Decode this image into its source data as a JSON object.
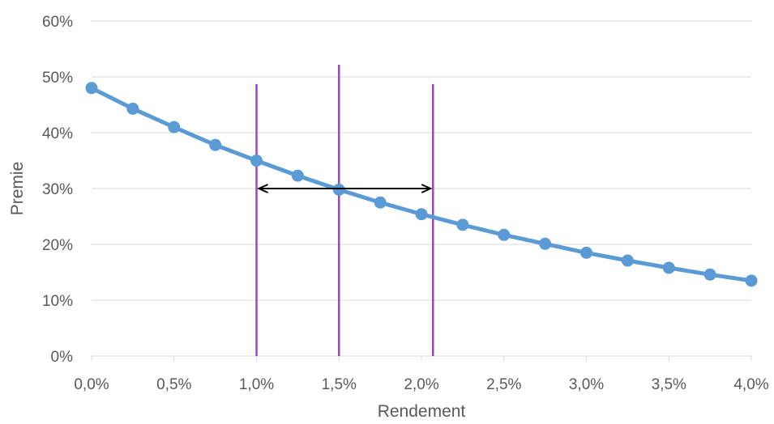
{
  "chart_data": {
    "type": "line",
    "title": "",
    "xlabel": "Rendement",
    "ylabel": "Premie",
    "x_ticks": [
      "0,0%",
      "0,5%",
      "1,0%",
      "1,5%",
      "2,0%",
      "2,5%",
      "3,0%",
      "3,5%",
      "4,0%"
    ],
    "y_ticks": [
      "0%",
      "10%",
      "20%",
      "30%",
      "40%",
      "50%",
      "60%"
    ],
    "xlim": [
      0,
      4.0
    ],
    "ylim": [
      0,
      60
    ],
    "grid": "horizontal",
    "legend": "none",
    "series": [
      {
        "color": "#5B9BD5",
        "x": [
          0,
          0.25,
          0.5,
          0.75,
          1.0,
          1.25,
          1.5,
          1.75,
          2.0,
          2.25,
          2.5,
          2.75,
          3.0,
          3.25,
          3.5,
          3.75,
          4.0
        ],
        "y": [
          48.0,
          44.3,
          41.0,
          37.8,
          35.0,
          32.3,
          29.8,
          27.5,
          25.4,
          23.5,
          21.7,
          20.1,
          18.5,
          17.1,
          15.8,
          14.6,
          13.5
        ]
      }
    ],
    "annotations": {
      "vertical_lines": {
        "color": "#A63FC9",
        "x": [
          1.0,
          1.5,
          2.07
        ]
      },
      "double_arrow": {
        "color": "#000000",
        "x_from": 1.0,
        "x_to": 2.07,
        "y": 30
      }
    }
  }
}
